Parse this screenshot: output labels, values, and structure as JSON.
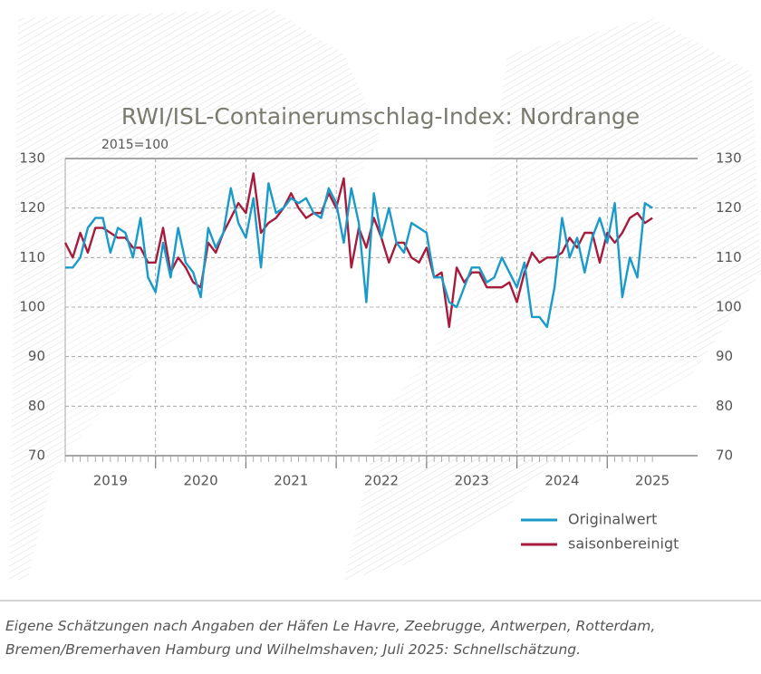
{
  "chart_data": {
    "type": "line",
    "title": "RWI/ISL-Containerumschlag-Index: Nordrange",
    "subtitle": "2015=100",
    "x": [
      2019,
      2019.0833,
      2019.1667,
      2019.25,
      2019.3333,
      2019.4167,
      2019.5,
      2019.5833,
      2019.6667,
      2019.75,
      2019.8333,
      2019.9167,
      2020,
      2020.0833,
      2020.1667,
      2020.25,
      2020.3333,
      2020.4167,
      2020.5,
      2020.5833,
      2020.6667,
      2020.75,
      2020.8333,
      2020.9167,
      2021,
      2021.0833,
      2021.1667,
      2021.25,
      2021.3333,
      2021.4167,
      2021.5,
      2021.5833,
      2021.6667,
      2021.75,
      2021.8333,
      2021.9167,
      2022,
      2022.0833,
      2022.1667,
      2022.25,
      2022.3333,
      2022.4167,
      2022.5,
      2022.5833,
      2022.6667,
      2022.75,
      2022.8333,
      2022.9167,
      2023,
      2023.0833,
      2023.1667,
      2023.25,
      2023.3333,
      2023.4167,
      2023.5,
      2023.5833,
      2023.6667,
      2023.75,
      2023.8333,
      2023.9167,
      2024,
      2024.0833,
      2024.1667,
      2024.25,
      2024.3333,
      2024.4167,
      2024.5,
      2024.5833,
      2024.6667,
      2024.75,
      2024.8333,
      2024.9167,
      2025,
      2025.0833,
      2025.1667,
      2025.25,
      2025.3333,
      2025.4167,
      2025.5
    ],
    "series": [
      {
        "name": "Originalwert",
        "color": "#1a9ac9",
        "values": [
          108,
          108,
          110,
          116,
          118,
          118,
          111,
          116,
          115,
          110,
          118,
          106,
          103,
          113,
          106,
          116,
          109,
          107,
          102,
          116,
          112,
          115,
          124,
          117,
          114,
          122,
          108,
          125,
          119,
          120,
          122,
          121,
          122,
          119,
          118,
          124,
          121,
          113,
          124,
          117,
          101,
          123,
          114,
          120,
          113,
          111,
          117,
          116,
          115,
          106,
          106,
          101,
          100,
          104,
          108,
          108,
          105,
          106,
          110,
          107,
          104,
          109,
          98,
          98,
          96,
          104,
          118,
          110,
          114,
          107,
          114,
          118,
          113,
          121,
          102,
          110,
          106,
          121,
          120
        ]
      },
      {
        "name": "saisonbereinigt",
        "color": "#a61c3c",
        "values": [
          113,
          110,
          115,
          111,
          116,
          116,
          115,
          114,
          114,
          112,
          112,
          109,
          109,
          116,
          107,
          110,
          108,
          105,
          104,
          113,
          111,
          115,
          118,
          121,
          119,
          127,
          115,
          117,
          118,
          120,
          123,
          120,
          118,
          119,
          119,
          123,
          120,
          126,
          108,
          116,
          112,
          118,
          114,
          109,
          113,
          113,
          110,
          109,
          112,
          106,
          107,
          96,
          108,
          105,
          107,
          107,
          104,
          104,
          104,
          105,
          101,
          107,
          111,
          109,
          110,
          110,
          111,
          114,
          112,
          115,
          115,
          109,
          115,
          113,
          115,
          118,
          119,
          117,
          118
        ]
      }
    ],
    "xlim": [
      2019,
      2026
    ],
    "xticks": [
      2020,
      2021,
      2022,
      2023,
      2024,
      2025
    ],
    "x_labels": [
      {
        "value": 2019.5,
        "label": "2019"
      },
      {
        "value": 2020.5,
        "label": "2020"
      },
      {
        "value": 2021.5,
        "label": "2021"
      },
      {
        "value": 2022.5,
        "label": "2022"
      },
      {
        "value": 2023.5,
        "label": "2023"
      },
      {
        "value": 2024.5,
        "label": "2024"
      },
      {
        "value": 2025.5,
        "label": "2025"
      }
    ],
    "ylim": [
      70,
      130
    ],
    "yticks": [
      70,
      80,
      90,
      100,
      110,
      120,
      130
    ],
    "grid": true,
    "legend": "lower right",
    "note": [
      "Eigene Schätzungen nach Angaben der Häfen Le Havre, Zeebrugge, Antwerpen, Rotterdam,",
      "Bremen/Bremerhaven Hamburg und Wilhelmshaven; Juli 2025: Schnellschätzung."
    ]
  }
}
